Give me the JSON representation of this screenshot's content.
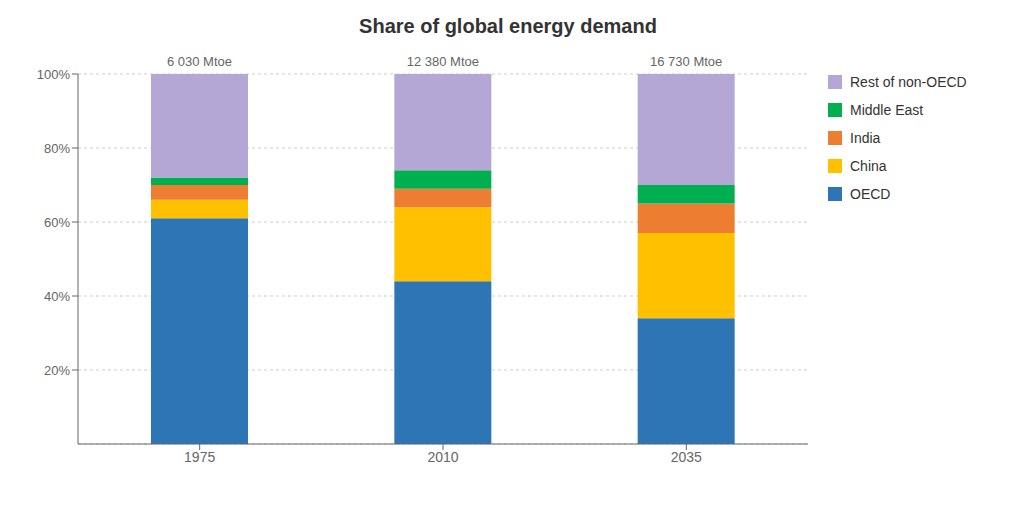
{
  "chart_data": {
    "type": "bar",
    "stacked": true,
    "title": "Share of global energy demand",
    "categories": [
      "1975",
      "2010",
      "2035"
    ],
    "annotations": [
      "6 030 Mtoe",
      "12 380 Mtoe",
      "16 730 Mtoe"
    ],
    "series": [
      {
        "name": "OECD",
        "values": [
          61,
          44,
          34
        ],
        "color": "#2E75B6"
      },
      {
        "name": "China",
        "values": [
          5,
          20,
          23
        ],
        "color": "#FFC000"
      },
      {
        "name": "India",
        "values": [
          4,
          5,
          8
        ],
        "color": "#ED7D31"
      },
      {
        "name": "Middle East",
        "values": [
          2,
          5,
          5
        ],
        "color": "#00B050"
      },
      {
        "name": "Rest of non-OECD",
        "values": [
          28,
          26,
          30
        ],
        "color": "#B4A7D6"
      }
    ],
    "ylim": [
      0,
      100
    ],
    "yticks": [
      {
        "value": 20,
        "label": "20%"
      },
      {
        "value": 40,
        "label": "40%"
      },
      {
        "value": 60,
        "label": "60%"
      },
      {
        "value": 80,
        "label": "80%"
      },
      {
        "value": 100,
        "label": "100%"
      }
    ],
    "grid": true,
    "legend": "right"
  }
}
